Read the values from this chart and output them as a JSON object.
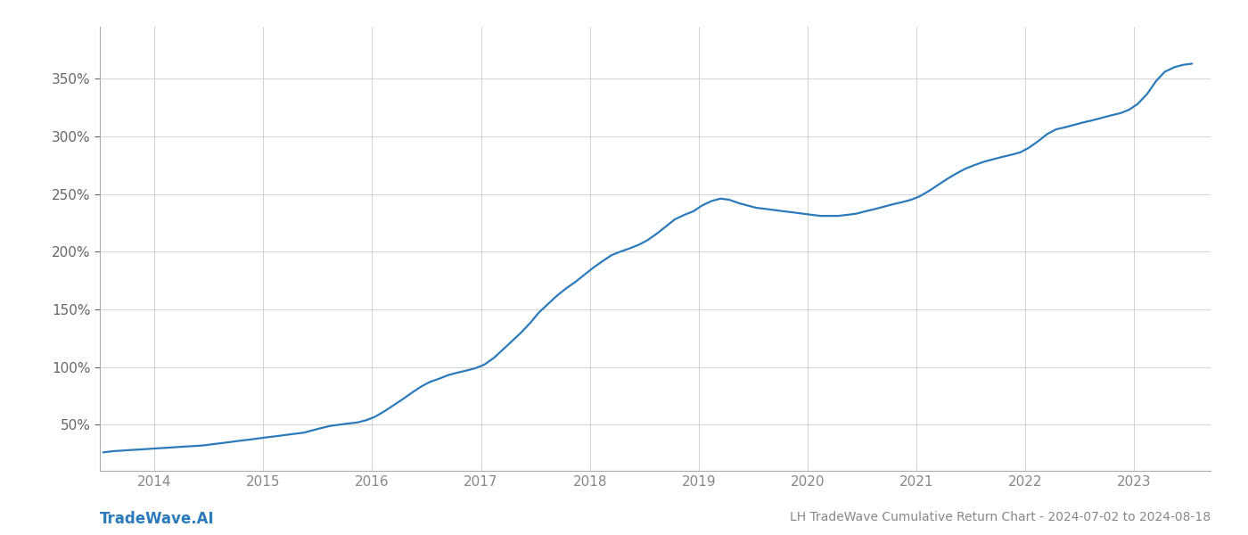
{
  "title": "LH TradeWave Cumulative Return Chart - 2024-07-02 to 2024-08-18",
  "watermark": "TradeWave.AI",
  "line_color": "#2b7bba",
  "background_color": "#ffffff",
  "grid_color": "#cccccc",
  "x_years": [
    2014,
    2015,
    2016,
    2017,
    2018,
    2019,
    2020,
    2021,
    2022,
    2023
  ],
  "x_values": [
    2013.53,
    2013.62,
    2013.7,
    2013.78,
    2013.87,
    2013.95,
    2014.03,
    2014.12,
    2014.2,
    2014.28,
    2014.37,
    2014.45,
    2014.53,
    2014.62,
    2014.7,
    2014.78,
    2014.87,
    2014.95,
    2015.03,
    2015.12,
    2015.2,
    2015.28,
    2015.37,
    2015.45,
    2015.53,
    2015.62,
    2015.7,
    2015.78,
    2015.87,
    2015.95,
    2016.03,
    2016.12,
    2016.2,
    2016.28,
    2016.37,
    2016.45,
    2016.53,
    2016.62,
    2016.7,
    2016.78,
    2016.87,
    2016.95,
    2017.03,
    2017.12,
    2017.2,
    2017.28,
    2017.37,
    2017.45,
    2017.53,
    2017.62,
    2017.7,
    2017.78,
    2017.87,
    2017.95,
    2018.03,
    2018.12,
    2018.2,
    2018.28,
    2018.37,
    2018.45,
    2018.53,
    2018.62,
    2018.7,
    2018.78,
    2018.87,
    2018.95,
    2019.03,
    2019.12,
    2019.2,
    2019.28,
    2019.37,
    2019.45,
    2019.53,
    2019.62,
    2019.7,
    2019.78,
    2019.87,
    2019.95,
    2020.03,
    2020.12,
    2020.2,
    2020.28,
    2020.37,
    2020.45,
    2020.53,
    2020.62,
    2020.7,
    2020.78,
    2020.87,
    2020.95,
    2021.03,
    2021.12,
    2021.2,
    2021.28,
    2021.37,
    2021.45,
    2021.53,
    2021.62,
    2021.7,
    2021.78,
    2021.87,
    2021.95,
    2022.03,
    2022.12,
    2022.2,
    2022.28,
    2022.37,
    2022.45,
    2022.53,
    2022.62,
    2022.7,
    2022.78,
    2022.87,
    2022.95,
    2023.03,
    2023.12,
    2023.2,
    2023.28,
    2023.37,
    2023.45,
    2023.53
  ],
  "y_values": [
    26,
    27,
    27.5,
    28,
    28.5,
    29,
    29.5,
    30,
    30.5,
    31,
    31.5,
    32,
    33,
    34,
    35,
    36,
    37,
    38,
    39,
    40,
    41,
    42,
    43,
    45,
    47,
    49,
    50,
    51,
    52,
    54,
    57,
    62,
    67,
    72,
    78,
    83,
    87,
    90,
    93,
    95,
    97,
    99,
    102,
    108,
    115,
    122,
    130,
    138,
    147,
    155,
    162,
    168,
    174,
    180,
    186,
    192,
    197,
    200,
    203,
    206,
    210,
    216,
    222,
    228,
    232,
    235,
    240,
    244,
    246,
    245,
    242,
    240,
    238,
    237,
    236,
    235,
    234,
    233,
    232,
    231,
    231,
    231,
    232,
    233,
    235,
    237,
    239,
    241,
    243,
    245,
    248,
    253,
    258,
    263,
    268,
    272,
    275,
    278,
    280,
    282,
    284,
    286,
    290,
    296,
    302,
    306,
    308,
    310,
    312,
    314,
    316,
    318,
    320,
    323,
    328,
    337,
    348,
    356,
    360,
    362,
    363
  ],
  "yticks": [
    50,
    100,
    150,
    200,
    250,
    300,
    350
  ],
  "ylim": [
    10,
    395
  ],
  "xlim": [
    2013.5,
    2023.7
  ],
  "tick_fontsize": 11,
  "title_fontsize": 10,
  "watermark_fontsize": 12,
  "line_width": 1.6,
  "tick_color": "#888888",
  "ylabel_color": "#666666",
  "spine_color": "#aaaaaa"
}
